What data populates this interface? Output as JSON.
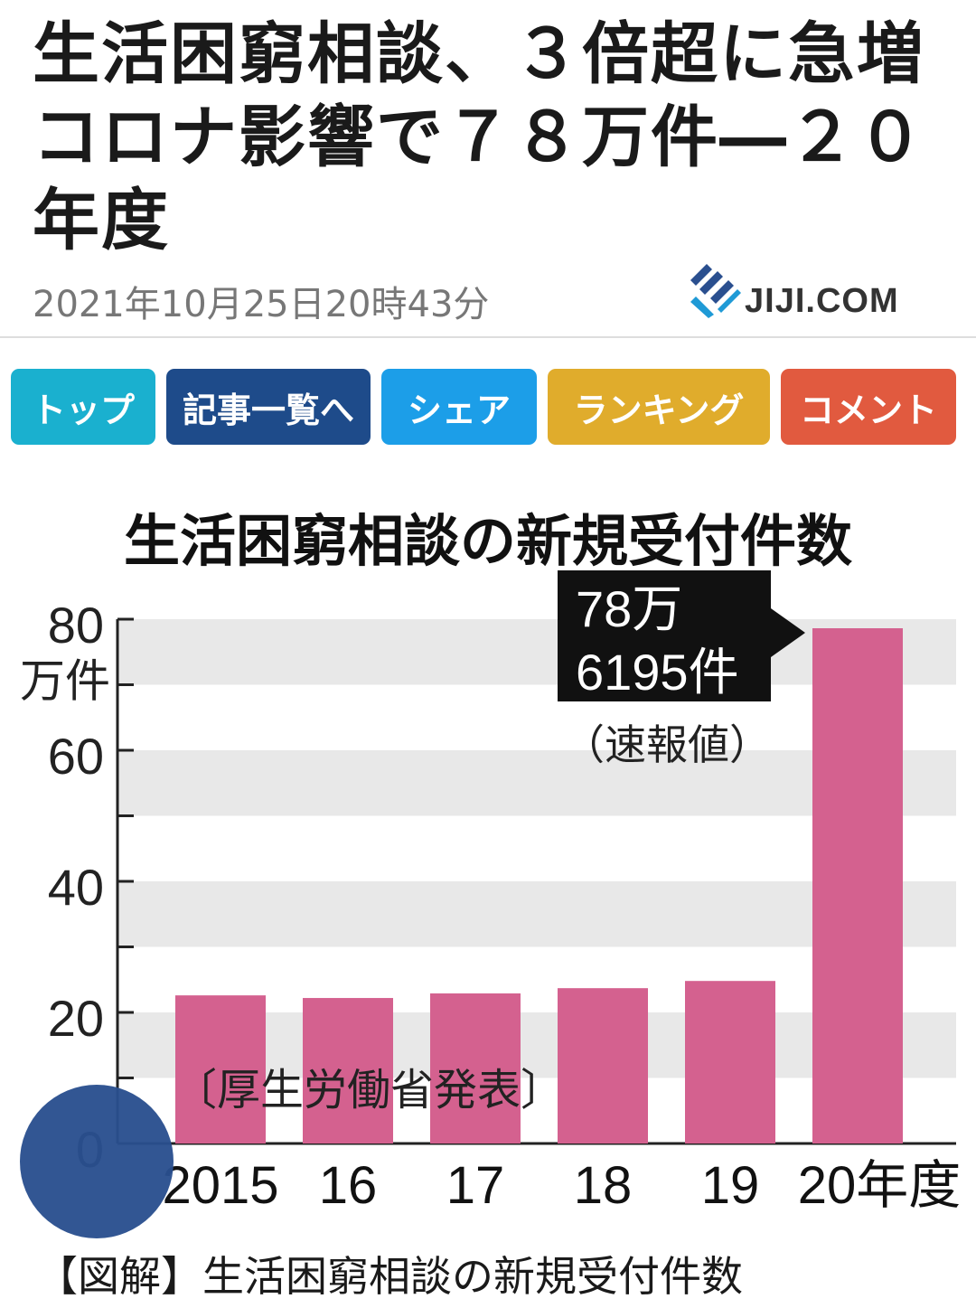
{
  "article": {
    "headline": "生活困窮相談、３倍超に急増　コロナ影響で７８万件―２０年度",
    "timestamp": "2021年10月25日20時43分",
    "source_logo": "JIJI.COM"
  },
  "nav": [
    {
      "label": "トップ",
      "color": "#1ab0cf"
    },
    {
      "label": "記事一覧へ",
      "color": "#1e4b8a"
    },
    {
      "label": "シェア",
      "color": "#1c9ee8"
    },
    {
      "label": "ランキング",
      "color": "#e0ac2c"
    },
    {
      "label": "コメント",
      "color": "#e15a3f"
    }
  ],
  "chart_data": {
    "type": "bar",
    "title": "生活困窮相談の新規受付件数",
    "categories": [
      "2015",
      "16",
      "17",
      "18",
      "19",
      "20年度"
    ],
    "values": [
      22.6,
      22.2,
      22.9,
      23.7,
      24.8,
      78.6195
    ],
    "ylabel": "万件",
    "yticks": [
      "0",
      "20",
      "40",
      "60",
      "80"
    ],
    "ylim": [
      0,
      80
    ],
    "bar_color": "#d4618f",
    "callout": {
      "line1": "78万",
      "line2": "6195件",
      "note": "（速報値）"
    },
    "source_note": "〔厚生労働省発表〕",
    "grid": "alternating bands"
  },
  "caption": "【図解】生活困窮相談の新規受付件数"
}
